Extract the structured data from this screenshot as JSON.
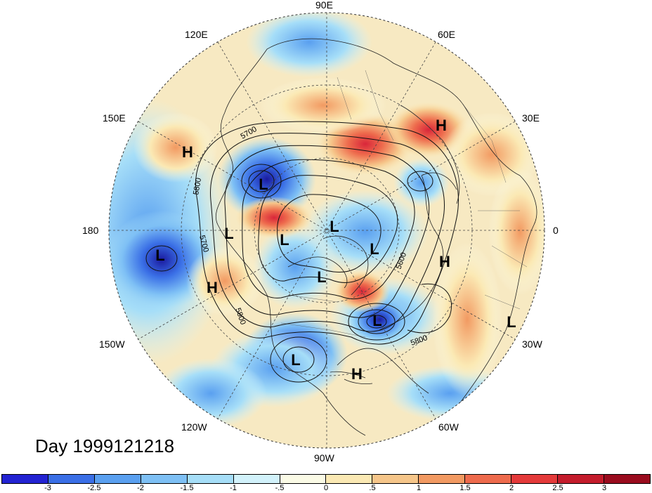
{
  "lon_labels": {
    "lon_90e": "90E",
    "lon_120e": "120E",
    "lon_60e": "60E",
    "lon_150e": "150E",
    "lon_30e": "30E",
    "lon_180": "180",
    "lon_0": "0",
    "lon_150w": "150W",
    "lon_30w": "30W",
    "lon_120w": "120W",
    "lon_60w": "60W",
    "lon_90w": "90W"
  },
  "day_label": "Day 1999121218",
  "contour_labels": {
    "c5700_upper": "5700",
    "c5800_left": "5800",
    "c5700_left": "5700",
    "c5600_right": "5600",
    "c5800_lower_left": "5800",
    "c5800_lower_right": "5800"
  },
  "centers": [
    {
      "name": "center-h-1",
      "type": "H"
    },
    {
      "name": "center-h-2",
      "type": "H"
    },
    {
      "name": "center-l-1",
      "type": "L"
    },
    {
      "name": "center-l-2",
      "type": "L"
    },
    {
      "name": "center-l-3",
      "type": "L"
    },
    {
      "name": "center-l-4",
      "type": "L"
    },
    {
      "name": "center-l-5",
      "type": "L"
    },
    {
      "name": "center-l-6",
      "type": "L"
    },
    {
      "name": "center-h-3",
      "type": "H"
    },
    {
      "name": "center-l-7",
      "type": "L"
    },
    {
      "name": "center-l-8",
      "type": "L"
    },
    {
      "name": "center-h-4",
      "type": "H"
    },
    {
      "name": "center-l-9",
      "type": "L"
    },
    {
      "name": "center-l-10",
      "type": "L"
    },
    {
      "name": "center-h-5",
      "type": "H"
    }
  ],
  "colorbar": {
    "colors": [
      "#2323d2",
      "#3a6fe6",
      "#5aa0f0",
      "#7ec0f5",
      "#a6def8",
      "#d2f2fb",
      "#fbfbe6",
      "#fbe9b4",
      "#f6c68a",
      "#f29a62",
      "#ee6b4d",
      "#e43a3a",
      "#c41c2c",
      "#9a0c1e"
    ],
    "ticks": [
      "-3",
      "-2.5",
      "-2",
      "-1.5",
      "-1",
      "-.5",
      "0",
      ".5",
      "1",
      "1.5",
      "2",
      "2.5",
      "3"
    ]
  },
  "palette": {
    "cold_strong": "#2323d2",
    "cold_mid": "#5aa0f0",
    "cold_light": "#a6def8",
    "neutral": "#fbfbe6",
    "warm_light": "#fbe9b4",
    "warm_mid": "#f29a62",
    "warm_strong": "#e43a3a"
  }
}
